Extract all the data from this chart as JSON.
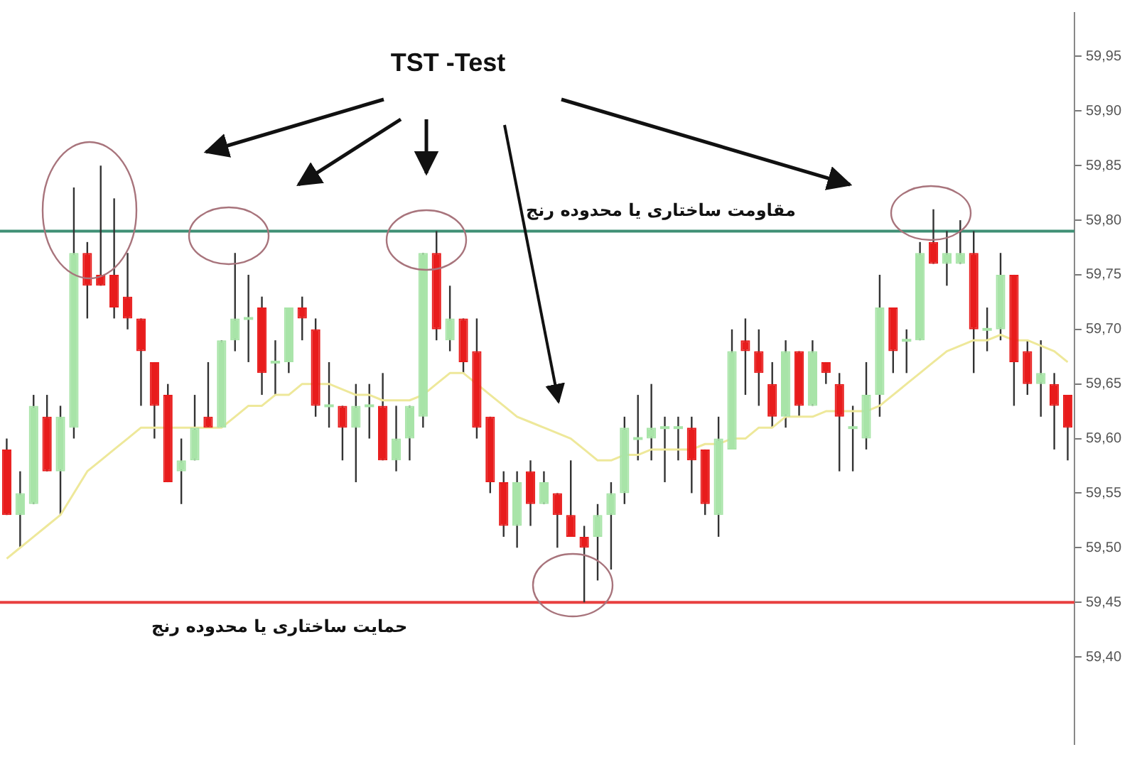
{
  "chart_data": {
    "type": "candlestick",
    "title": "TST -Test",
    "categories": [
      null,
      null,
      null,
      null,
      null,
      null,
      null,
      null,
      null,
      null,
      null,
      null,
      null,
      null,
      null,
      null,
      null,
      null,
      null,
      null,
      null,
      null,
      null,
      null,
      null,
      null,
      null,
      null,
      null,
      null,
      null,
      null,
      null,
      null,
      null,
      null,
      null,
      null,
      null,
      null,
      null,
      null,
      null,
      null,
      null,
      null,
      null,
      null,
      null,
      null,
      null,
      null,
      null,
      null,
      null,
      null,
      null,
      null,
      null,
      null,
      null,
      null,
      null,
      null,
      null,
      null,
      null,
      null,
      null,
      null,
      null,
      null,
      null,
      null,
      null,
      null,
      null,
      null,
      null,
      null
    ],
    "ohlc": [
      [
        59.59,
        59.6,
        59.53,
        59.53
      ],
      [
        59.53,
        59.57,
        59.5,
        59.55
      ],
      [
        59.54,
        59.64,
        59.54,
        59.63
      ],
      [
        59.62,
        59.64,
        59.57,
        59.57
      ],
      [
        59.57,
        59.63,
        59.53,
        59.62
      ],
      [
        59.61,
        59.83,
        59.6,
        59.77
      ],
      [
        59.77,
        59.78,
        59.71,
        59.74
      ],
      [
        59.75,
        59.85,
        59.74,
        59.74
      ],
      [
        59.75,
        59.82,
        59.71,
        59.72
      ],
      [
        59.73,
        59.77,
        59.7,
        59.71
      ],
      [
        59.71,
        59.71,
        59.63,
        59.68
      ],
      [
        59.67,
        59.67,
        59.6,
        59.63
      ],
      [
        59.64,
        59.65,
        59.56,
        59.56
      ],
      [
        59.57,
        59.6,
        59.54,
        59.58
      ],
      [
        59.58,
        59.64,
        59.58,
        59.61
      ],
      [
        59.62,
        59.67,
        59.61,
        59.61
      ],
      [
        59.61,
        59.69,
        59.61,
        59.69
      ],
      [
        59.69,
        59.77,
        59.68,
        59.71
      ],
      [
        59.71,
        59.75,
        59.67,
        59.71
      ],
      [
        59.72,
        59.73,
        59.64,
        59.66
      ],
      [
        59.67,
        59.69,
        59.64,
        59.67
      ],
      [
        59.67,
        59.72,
        59.66,
        59.72
      ],
      [
        59.72,
        59.73,
        59.69,
        59.71
      ],
      [
        59.7,
        59.71,
        59.62,
        59.63
      ],
      [
        59.63,
        59.67,
        59.61,
        59.63
      ],
      [
        59.63,
        59.63,
        59.58,
        59.61
      ],
      [
        59.61,
        59.65,
        59.56,
        59.63
      ],
      [
        59.63,
        59.65,
        59.6,
        59.63
      ],
      [
        59.63,
        59.66,
        59.58,
        59.58
      ],
      [
        59.58,
        59.63,
        59.57,
        59.6
      ],
      [
        59.6,
        59.63,
        59.58,
        59.63
      ],
      [
        59.62,
        59.77,
        59.61,
        59.77
      ],
      [
        59.77,
        59.79,
        59.69,
        59.7
      ],
      [
        59.69,
        59.74,
        59.68,
        59.71
      ],
      [
        59.71,
        59.71,
        59.66,
        59.67
      ],
      [
        59.68,
        59.71,
        59.6,
        59.61
      ],
      [
        59.62,
        59.62,
        59.55,
        59.56
      ],
      [
        59.56,
        59.57,
        59.51,
        59.52
      ],
      [
        59.52,
        59.57,
        59.5,
        59.56
      ],
      [
        59.57,
        59.58,
        59.52,
        59.54
      ],
      [
        59.54,
        59.57,
        59.54,
        59.56
      ],
      [
        59.55,
        59.55,
        59.5,
        59.53
      ],
      [
        59.53,
        59.58,
        59.51,
        59.51
      ],
      [
        59.51,
        59.52,
        59.45,
        59.5
      ],
      [
        59.51,
        59.54,
        59.47,
        59.53
      ],
      [
        59.53,
        59.56,
        59.48,
        59.55
      ],
      [
        59.55,
        59.62,
        59.54,
        59.61
      ],
      [
        59.6,
        59.64,
        59.58,
        59.6
      ],
      [
        59.6,
        59.65,
        59.58,
        59.61
      ],
      [
        59.61,
        59.62,
        59.56,
        59.61
      ],
      [
        59.61,
        59.62,
        59.58,
        59.61
      ],
      [
        59.61,
        59.62,
        59.55,
        59.58
      ],
      [
        59.59,
        59.59,
        59.53,
        59.54
      ],
      [
        59.53,
        59.62,
        59.51,
        59.6
      ],
      [
        59.59,
        59.7,
        59.59,
        59.68
      ],
      [
        59.69,
        59.71,
        59.64,
        59.68
      ],
      [
        59.68,
        59.7,
        59.63,
        59.66
      ],
      [
        59.65,
        59.67,
        59.61,
        59.62
      ],
      [
        59.62,
        59.69,
        59.61,
        59.68
      ],
      [
        59.68,
        59.68,
        59.62,
        59.63
      ],
      [
        59.63,
        59.69,
        59.63,
        59.68
      ],
      [
        59.67,
        59.67,
        59.65,
        59.66
      ],
      [
        59.65,
        59.66,
        59.57,
        59.62
      ],
      [
        59.61,
        59.63,
        59.57,
        59.61
      ],
      [
        59.6,
        59.67,
        59.59,
        59.64
      ],
      [
        59.64,
        59.75,
        59.62,
        59.72
      ],
      [
        59.72,
        59.72,
        59.66,
        59.68
      ],
      [
        59.69,
        59.7,
        59.66,
        59.69
      ],
      [
        59.69,
        59.78,
        59.69,
        59.77
      ],
      [
        59.78,
        59.81,
        59.76,
        59.76
      ],
      [
        59.76,
        59.79,
        59.74,
        59.77
      ],
      [
        59.76,
        59.8,
        59.76,
        59.77
      ],
      [
        59.77,
        59.79,
        59.66,
        59.7
      ],
      [
        59.7,
        59.72,
        59.68,
        59.7
      ],
      [
        59.7,
        59.77,
        59.69,
        59.75
      ],
      [
        59.75,
        59.75,
        59.63,
        59.67
      ],
      [
        59.68,
        59.69,
        59.64,
        59.65
      ],
      [
        59.65,
        59.69,
        59.62,
        59.66
      ],
      [
        59.65,
        59.66,
        59.59,
        59.63
      ],
      [
        59.64,
        59.64,
        59.58,
        59.61
      ]
    ],
    "colors": [
      "#e81c1c",
      "#a8e4a8",
      "#a8e4a8",
      "#e81c1c",
      "#a8e4a8",
      "#a8e4a8",
      "#e81c1c",
      "#e81c1c",
      "#e81c1c",
      "#e81c1c",
      "#e81c1c",
      "#e81c1c",
      "#e81c1c",
      "#a8e4a8",
      "#a8e4a8",
      "#e81c1c",
      "#a8e4a8",
      "#a8e4a8",
      "#a8e4a8",
      "#e81c1c",
      "#a8e4a8",
      "#a8e4a8",
      "#e81c1c",
      "#e81c1c",
      "#a8e4a8",
      "#e81c1c",
      "#a8e4a8",
      "#a8e4a8",
      "#e81c1c",
      "#a8e4a8",
      "#a8e4a8",
      "#a8e4a8",
      "#e81c1c",
      "#a8e4a8",
      "#e81c1c",
      "#e81c1c",
      "#e81c1c",
      "#e81c1c",
      "#a8e4a8",
      "#e81c1c",
      "#a8e4a8",
      "#e81c1c",
      "#e81c1c",
      "#e81c1c",
      "#a8e4a8",
      "#a8e4a8",
      "#a8e4a8",
      "#a8e4a8",
      "#a8e4a8",
      "#a8e4a8",
      "#a8e4a8",
      "#e81c1c",
      "#e81c1c",
      "#a8e4a8",
      "#a8e4a8",
      "#e81c1c",
      "#e81c1c",
      "#e81c1c",
      "#a8e4a8",
      "#e81c1c",
      "#a8e4a8",
      "#e81c1c",
      "#e81c1c",
      "#a8e4a8",
      "#a8e4a8",
      "#a8e4a8",
      "#e81c1c",
      "#a8e4a8",
      "#a8e4a8",
      "#e81c1c",
      "#a8e4a8",
      "#a8e4a8",
      "#e81c1c",
      "#a8e4a8",
      "#a8e4a8",
      "#e81c1c",
      "#e81c1c",
      "#a8e4a8",
      "#e81c1c",
      "#e81c1c"
    ],
    "series": [
      {
        "type": "line",
        "color": "#eee89a",
        "values": [
          59.49,
          59.5,
          59.51,
          59.52,
          59.53,
          59.55,
          59.57,
          59.58,
          59.59,
          59.6,
          59.61,
          59.61,
          59.61,
          59.61,
          59.61,
          59.61,
          59.61,
          59.62,
          59.63,
          59.63,
          59.64,
          59.64,
          59.65,
          59.65,
          59.65,
          59.645,
          59.64,
          59.64,
          59.635,
          59.635,
          59.635,
          59.64,
          59.65,
          59.66,
          59.66,
          59.65,
          59.64,
          59.63,
          59.62,
          59.615,
          59.61,
          59.605,
          59.6,
          59.59,
          59.58,
          59.58,
          59.585,
          59.585,
          59.59,
          59.59,
          59.59,
          59.59,
          59.595,
          59.595,
          59.6,
          59.6,
          59.61,
          59.61,
          59.62,
          59.62,
          59.62,
          59.625,
          59.625,
          59.625,
          59.625,
          59.63,
          59.64,
          59.65,
          59.66,
          59.67,
          59.68,
          59.685,
          59.69,
          59.69,
          59.695,
          59.69,
          59.69,
          59.685,
          59.68,
          59.67
        ]
      }
    ],
    "ylim": [
      59.32,
      59.99
    ],
    "yticks": [
      {
        "value": 59.4,
        "label": "59,40"
      },
      {
        "value": 59.45,
        "label": "59,45"
      },
      {
        "value": 59.5,
        "label": "59,50"
      },
      {
        "value": 59.55,
        "label": "59,55"
      },
      {
        "value": 59.6,
        "label": "59,60"
      },
      {
        "value": 59.65,
        "label": "59,65"
      },
      {
        "value": 59.7,
        "label": "59,70"
      },
      {
        "value": 59.75,
        "label": "59,75"
      },
      {
        "value": 59.8,
        "label": "59,80"
      },
      {
        "value": 59.85,
        "label": "59,85"
      },
      {
        "value": 59.9,
        "label": "59,90"
      },
      {
        "value": 59.95,
        "label": "59,95"
      }
    ],
    "tick_labels": "y",
    "ref_lines": [
      {
        "axis": "y",
        "value": 59.79,
        "label": "مقاومت ساختاری یا محدوده رنج",
        "color": "#3f8f75"
      },
      {
        "axis": "y",
        "value": 59.45,
        "label": "حمایت ساختاری یا محدوده رنج",
        "color": "#e84040"
      }
    ]
  }
}
